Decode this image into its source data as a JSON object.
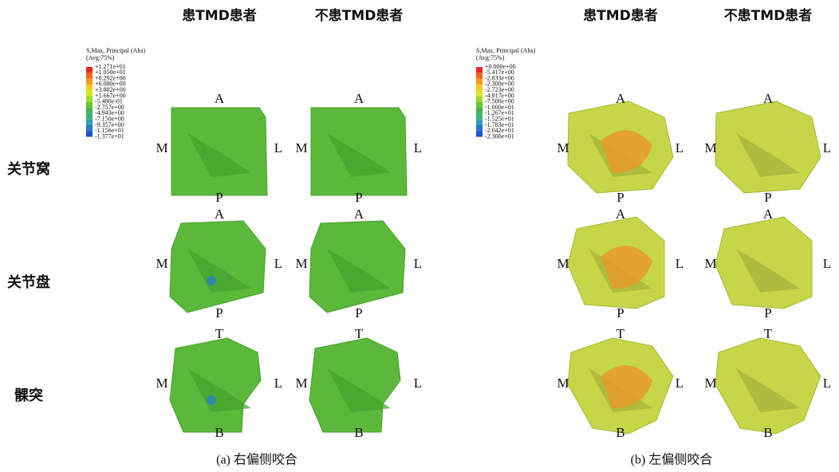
{
  "rows": [
    "关节窝",
    "关节盘",
    "髁突"
  ],
  "orientation": [
    {
      "top": "A",
      "bottom": "P",
      "left": "M",
      "right": "L"
    },
    {
      "top": "A",
      "bottom": "P",
      "left": "M",
      "right": "L"
    },
    {
      "top": "T",
      "bottom": "B",
      "left": "M",
      "right": "L"
    }
  ],
  "panels": [
    {
      "caption": "(a) 右偏侧咬合",
      "columns": [
        "患TMD患者",
        "不患TMD患者"
      ],
      "legend": {
        "title": "S,Max, Principal (Abs)",
        "subtitle": "(Avg:75%)",
        "labels": [
          "+1.271e+01",
          "+1.050e+01",
          "+8.292e+00",
          "+6.080e+00",
          "+3.882e+00",
          "+1.667e+00",
          "-5.480e-01",
          "-2.757e+00",
          "-4.943e+00",
          "-7.150e+00",
          "-9.357e+00",
          "-1.156e+01",
          "-1.377e+01"
        ]
      }
    },
    {
      "caption": "(b) 左偏侧咬合",
      "columns": [
        "患TMD患者",
        "不患TMD患者"
      ],
      "legend": {
        "title": "S,Max, Principal (Abs)",
        "subtitle": "(Avg:75%)",
        "labels": [
          "+0.000e+00",
          "-5.417e+00",
          "-2.833e+00",
          "-2.300e+00",
          "-2.723e+00",
          "-4.917e+00",
          "-7.500e+00",
          "-1.000e+01",
          "-1.267e+01",
          "-1.525e+01",
          "-1.783e+01",
          "-2.042e+01",
          "-2.300e+01"
        ]
      }
    }
  ]
}
